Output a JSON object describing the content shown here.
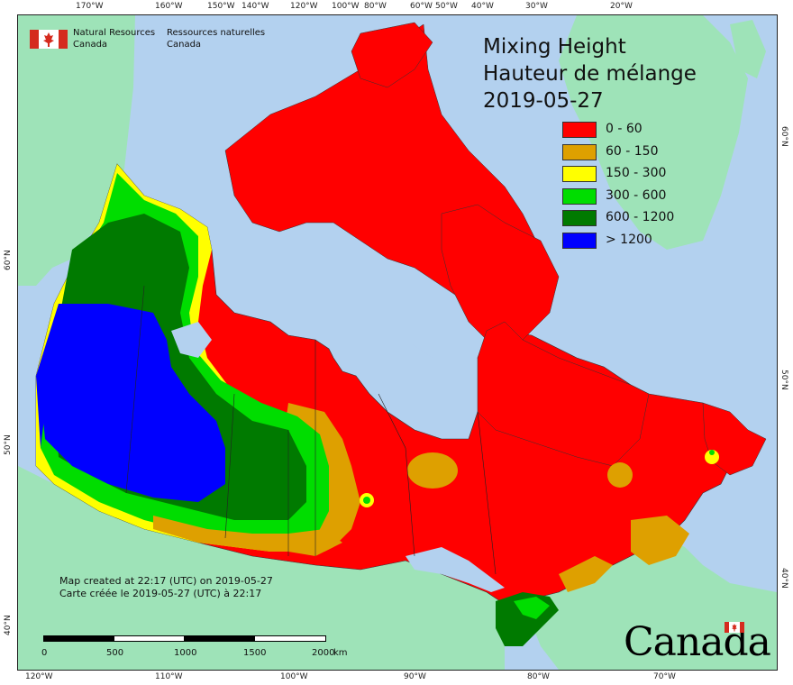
{
  "map": {
    "agency_en_line1": "Natural Resources",
    "agency_en_line2": "Canada",
    "agency_fr_line1": "Ressources naturelles",
    "agency_fr_line2": "Canada",
    "title_en": "Mixing Height",
    "title_fr": "Hauteur de mélange",
    "date": "2019-05-27",
    "legend": [
      {
        "label": "0 - 60",
        "color": "#ff0000"
      },
      {
        "label": "60 - 150",
        "color": "#dea000"
      },
      {
        "label": "150 - 300",
        "color": "#ffff00"
      },
      {
        "label": "300 - 600",
        "color": "#00dd00"
      },
      {
        "label": "600 - 1200",
        "color": "#007a00"
      },
      {
        "label": "> 1200",
        "color": "#0000ff"
      }
    ],
    "credit_en": "Map created at 22:17 (UTC) on 2019-05-27",
    "credit_fr": "Carte créée le 2019-05-27 (UTC) à 22:17",
    "scale_labels": [
      "0",
      "500",
      "1000",
      "1500",
      "2000"
    ],
    "scale_unit": "km",
    "wordmark": "Canada",
    "top_ticks": [
      "170°W",
      "160°W",
      "150°W",
      "140°W",
      "120°W",
      "100°W",
      "80°W",
      "60°W",
      "50°W",
      "40°W",
      "30°W",
      "20°W"
    ],
    "bottom_ticks": [
      "120°W",
      "110°W",
      "100°W",
      "90°W",
      "80°W",
      "70°W"
    ],
    "left_ticks": [
      "60°N",
      "50°N",
      "40°N"
    ],
    "right_ticks": [
      "60°N",
      "50°N",
      "40°N"
    ],
    "colors": {
      "ocean": "#b3d1ef",
      "foreign_land": "#9ee3b8",
      "water_body": "#b3d1ef"
    }
  }
}
